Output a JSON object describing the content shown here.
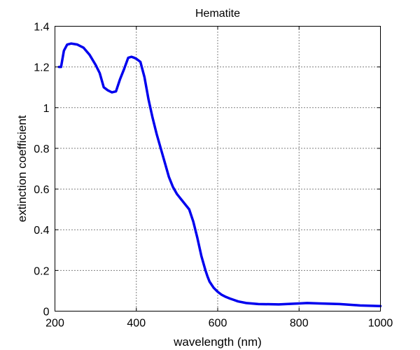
{
  "chart_data": {
    "type": "line",
    "title": "Hematite",
    "xlabel": "wavelength (nm)",
    "ylabel": "extinction coefficient",
    "xlim": [
      200,
      1000
    ],
    "ylim": [
      0,
      1.4
    ],
    "xticks": [
      200,
      400,
      600,
      800,
      1000
    ],
    "yticks": [
      0,
      0.2,
      0.4,
      0.6,
      0.8,
      1,
      1.2,
      1.4
    ],
    "xtick_labels": [
      "200",
      "400",
      "600",
      "800",
      "1000"
    ],
    "ytick_labels": [
      "0",
      "0.2",
      "0.4",
      "0.6",
      "0.8",
      "1",
      "1.2",
      "1.4"
    ],
    "grid": true,
    "series": [
      {
        "color": "#0000ee",
        "x": [
          210,
          215,
          222,
          230,
          240,
          255,
          270,
          285,
          300,
          310,
          320,
          330,
          340,
          350,
          360,
          370,
          380,
          388,
          395,
          400,
          410,
          420,
          430,
          440,
          450,
          460,
          470,
          480,
          490,
          500,
          510,
          520,
          530,
          540,
          550,
          560,
          570,
          575,
          580,
          590,
          600,
          610,
          620,
          630,
          640,
          650,
          670,
          700,
          750,
          800,
          820,
          850,
          900,
          950,
          1000
        ],
        "y": [
          1.2,
          1.2,
          1.28,
          1.31,
          1.315,
          1.31,
          1.295,
          1.26,
          1.21,
          1.17,
          1.1,
          1.085,
          1.075,
          1.08,
          1.14,
          1.19,
          1.245,
          1.25,
          1.245,
          1.24,
          1.225,
          1.15,
          1.04,
          0.95,
          0.87,
          0.8,
          0.73,
          0.66,
          0.61,
          0.575,
          0.55,
          0.525,
          0.5,
          0.44,
          0.36,
          0.27,
          0.2,
          0.17,
          0.145,
          0.115,
          0.095,
          0.08,
          0.07,
          0.062,
          0.055,
          0.048,
          0.04,
          0.035,
          0.033,
          0.038,
          0.04,
          0.038,
          0.035,
          0.028,
          0.025
        ]
      }
    ]
  }
}
